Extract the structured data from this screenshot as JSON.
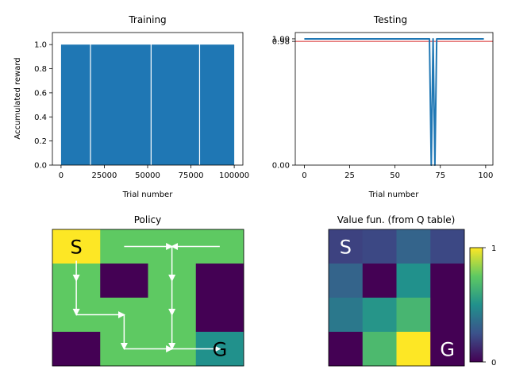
{
  "chart_data": [
    {
      "type": "bar",
      "title": "Training",
      "xlabel": "Trial number",
      "ylabel": "Accumulated reward",
      "xlim": [
        -5000,
        105000
      ],
      "ylim": [
        0,
        1.1
      ],
      "xticks": [
        0,
        25000,
        50000,
        75000,
        100000
      ],
      "yticks": [
        0.0,
        0.2,
        0.4,
        0.6,
        0.8,
        1.0
      ],
      "x_range": [
        0,
        100000
      ],
      "value": 1.0,
      "gaps_at": [
        17000,
        52000,
        80000
      ],
      "color": "#1f77b4"
    },
    {
      "type": "line",
      "title": "Testing",
      "xlabel": "Trial number",
      "ylabel": "",
      "xlim": [
        -5,
        104
      ],
      "ylim": [
        0,
        1.05
      ],
      "xticks": [
        0,
        25,
        50,
        75,
        100
      ],
      "yticks": [
        0.0,
        0.98,
        1.0
      ],
      "ytick_labels": [
        "0.00",
        "0.98",
        "1.00"
      ],
      "series": [
        {
          "color": "#1f77b4",
          "x": [
            0,
            69,
            70,
            71,
            72,
            73,
            99
          ],
          "y": [
            1.0,
            1.0,
            0.0,
            1.0,
            0.0,
            1.0,
            1.0
          ]
        }
      ],
      "hline": {
        "y": 0.98,
        "color": "#d62728"
      }
    },
    {
      "type": "heatmap",
      "title": "Policy",
      "rows": 4,
      "cols": 4,
      "values": [
        [
          1.0,
          0.6,
          0.6,
          0.6
        ],
        [
          0.6,
          0.0,
          0.6,
          0.0
        ],
        [
          0.6,
          0.6,
          0.6,
          0.0
        ],
        [
          0.0,
          0.6,
          0.6,
          0.4
        ]
      ],
      "cell_labels": [
        {
          "row": 0,
          "col": 0,
          "text": "S",
          "color": "#000000"
        },
        {
          "row": 3,
          "col": 3,
          "text": "G",
          "color": "#000000"
        }
      ],
      "arrows": [
        {
          "from": [
            0,
            1
          ],
          "to": [
            0,
            2
          ]
        },
        {
          "from": [
            0,
            3
          ],
          "to": [
            0,
            2
          ]
        },
        {
          "from": [
            0,
            0
          ],
          "to": [
            1,
            0
          ]
        },
        {
          "from": [
            0,
            2
          ],
          "to": [
            1,
            2
          ]
        },
        {
          "from": [
            1,
            0
          ],
          "to": [
            2,
            0
          ]
        },
        {
          "from": [
            1,
            2
          ],
          "to": [
            2,
            2
          ]
        },
        {
          "from": [
            2,
            0
          ],
          "to": [
            2,
            1
          ]
        },
        {
          "from": [
            2,
            1
          ],
          "to": [
            3,
            1
          ]
        },
        {
          "from": [
            2,
            2
          ],
          "to": [
            3,
            2
          ]
        },
        {
          "from": [
            3,
            1
          ],
          "to": [
            3,
            2
          ]
        },
        {
          "from": [
            3,
            2
          ],
          "to": [
            3,
            3
          ]
        }
      ]
    },
    {
      "type": "heatmap",
      "title": "Value fun. (from Q table)",
      "rows": 4,
      "cols": 4,
      "values": [
        [
          0.2,
          0.22,
          0.32,
          0.22
        ],
        [
          0.32,
          0.0,
          0.5,
          0.0
        ],
        [
          0.4,
          0.52,
          0.66,
          0.0
        ],
        [
          0.0,
          0.68,
          1.0,
          0.0
        ]
      ],
      "cell_labels": [
        {
          "row": 0,
          "col": 0,
          "text": "S",
          "color": "#ffffff"
        },
        {
          "row": 3,
          "col": 3,
          "text": "G",
          "color": "#ffffff"
        }
      ],
      "colorbar": {
        "min": 0,
        "max": 1,
        "tick_labels": [
          "0",
          "1"
        ]
      }
    }
  ]
}
